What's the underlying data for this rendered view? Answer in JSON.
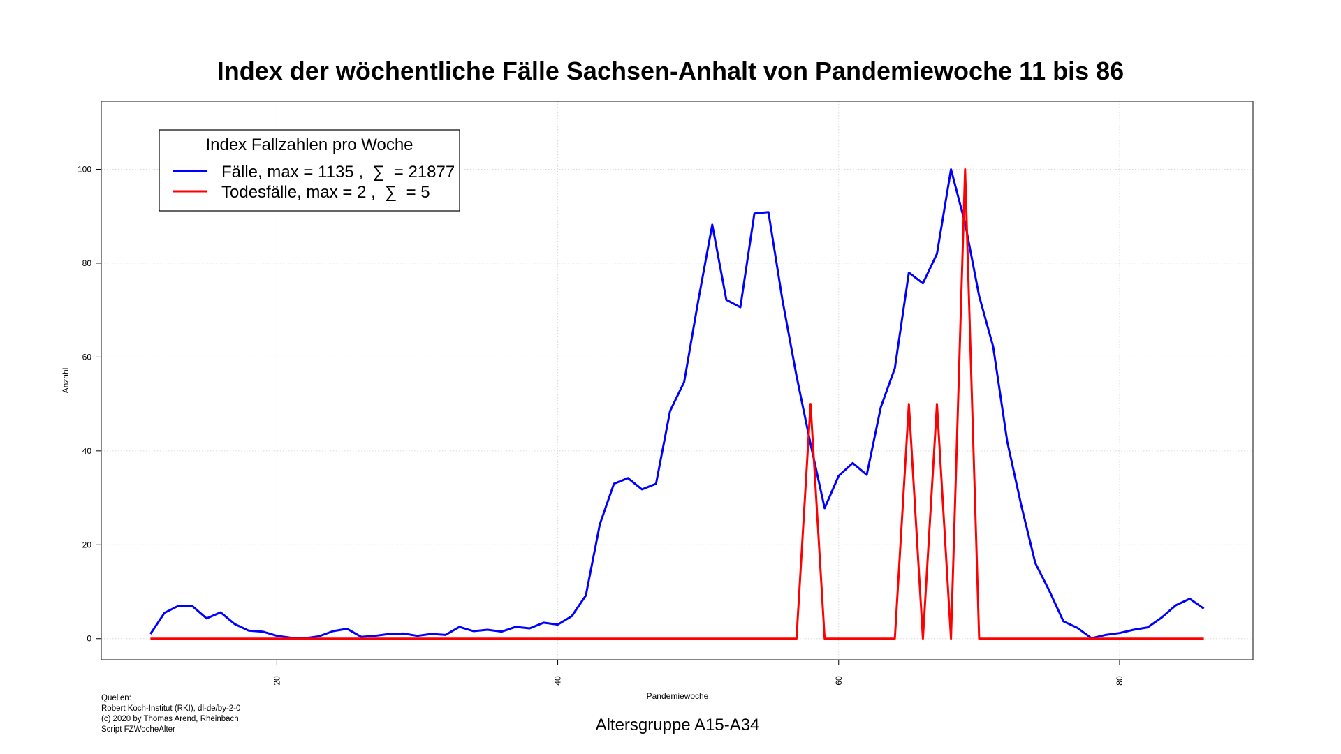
{
  "chart_data": {
    "type": "line",
    "title": "Index der wöchentliche Fälle Sachsen-Anhalt von Pandemiewoche 11 bis 86",
    "xlabel": "Pandemiewoche",
    "ylabel": "Anzahl",
    "xlim": [
      7.5,
      89.5
    ],
    "ylim": [
      -4.5,
      114.5
    ],
    "xticks": [
      20,
      40,
      60,
      80
    ],
    "yticks": [
      0,
      20,
      40,
      60,
      80,
      100
    ],
    "grid": true,
    "legend_placement": "top-left",
    "legend_title": "Index Fallzahlen pro Woche",
    "x": [
      11,
      12,
      13,
      14,
      15,
      16,
      17,
      18,
      19,
      20,
      21,
      22,
      23,
      24,
      25,
      26,
      27,
      28,
      29,
      30,
      31,
      32,
      33,
      34,
      35,
      36,
      37,
      38,
      39,
      40,
      41,
      42,
      43,
      44,
      45,
      46,
      47,
      48,
      49,
      50,
      51,
      52,
      53,
      54,
      55,
      56,
      57,
      58,
      59,
      60,
      61,
      62,
      63,
      64,
      65,
      66,
      67,
      68,
      69,
      70,
      71,
      72,
      73,
      74,
      75,
      76,
      77,
      78,
      79,
      80,
      81,
      82,
      83,
      84,
      85,
      86
    ],
    "series": [
      {
        "name": "Fälle, max = 1135 ,  ∑  = 21877",
        "color": "#0000ff",
        "values": [
          1,
          5.5,
          7,
          6.9,
          4.3,
          5.6,
          3.1,
          1.7,
          1.5,
          0.6,
          0.2,
          0.1,
          0.5,
          1.6,
          2.1,
          0.4,
          0.6,
          1,
          1.1,
          0.6,
          1,
          0.8,
          2.5,
          1.6,
          1.9,
          1.5,
          2.5,
          2.2,
          3.4,
          3,
          4.8,
          9.2,
          24.4,
          33,
          34.2,
          31.8,
          33,
          48.5,
          54.7,
          72,
          88.2,
          72.2,
          70.6,
          90.6,
          90.9,
          72.1,
          56,
          41.5,
          27.8,
          34.7,
          37.4,
          34.9,
          49.3,
          57.6,
          78,
          75.7,
          82,
          100,
          88.5,
          73,
          62.2,
          42,
          28.4,
          16.1,
          10.2,
          3.7,
          2.3,
          0.1,
          0.8,
          1.2,
          1.9,
          2.4,
          4.5,
          7.1,
          8.5,
          6.4
        ]
      },
      {
        "name": "Todesfälle, max = 2 ,  ∑  = 5",
        "color": "#ff0000",
        "values": [
          0,
          0,
          0,
          0,
          0,
          0,
          0,
          0,
          0,
          0,
          0,
          0,
          0,
          0,
          0,
          0,
          0,
          0,
          0,
          0,
          0,
          0,
          0,
          0,
          0,
          0,
          0,
          0,
          0,
          0,
          0,
          0,
          0,
          0,
          0,
          0,
          0,
          0,
          0,
          0,
          0,
          0,
          0,
          0,
          0,
          0,
          0,
          50,
          0,
          0,
          0,
          0,
          0,
          0,
          50,
          0,
          50,
          0,
          100,
          0,
          0,
          0,
          0,
          0,
          0,
          0,
          0,
          0,
          0,
          0,
          0,
          0,
          0,
          0,
          0,
          0
        ]
      }
    ]
  },
  "footer": {
    "sources": [
      "Quellen:",
      "Robert Koch-Institut (RKI), dl-de/by-2-0",
      "(c) 2020 by Thomas Arend, Rheinbach",
      "Script FZWocheAlter"
    ],
    "subtitle": "Altersgruppe A15-A34"
  }
}
